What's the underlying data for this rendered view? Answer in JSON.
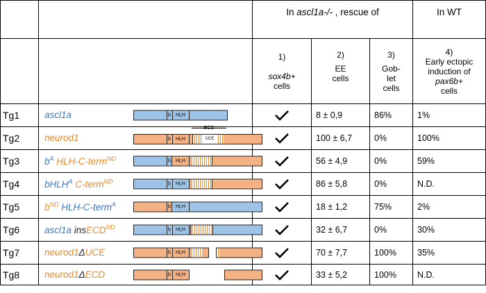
{
  "header": {
    "rescue_group": "In ascl1a-/- , rescue of",
    "rescue_prefix": "In ",
    "rescue_gene": "ascl1a-/-",
    "rescue_suffix": " , rescue of",
    "wt_group": "In WT"
  },
  "columns": [
    {
      "num": "1)",
      "line1": "",
      "line2": "sox4b+",
      "line3": "cells"
    },
    {
      "num": "2)",
      "line1": "EE",
      "line2": "cells",
      "line3": ""
    },
    {
      "num": "3)",
      "line1": "Gob-",
      "line2": "let",
      "line3": "cells"
    },
    {
      "num": "4)",
      "line1": "Early ectopic",
      "line2": "induction of",
      "line3": "pax6b+",
      "line4": "cells"
    }
  ],
  "ecd_label": "ECD",
  "domain_labels": {
    "b": "b",
    "hlh": "HLH",
    "uce": "UCE"
  },
  "rows": [
    {
      "id": "Tg1",
      "name": "ascl1a",
      "ee": "8 ± 0,9",
      "goblet": "86%",
      "early": "1%"
    },
    {
      "id": "Tg2",
      "name": "neurod1",
      "ee": "100 ± 6,7",
      "goblet": "0%",
      "early": "100%"
    },
    {
      "id": "Tg3",
      "name_pre": "b",
      "name_sup1": "A",
      "name_mid": " HLH-C-term",
      "name_sup2": "ND",
      "ee": "56 ± 4,9",
      "goblet": "0%",
      "early": "59%"
    },
    {
      "id": "Tg4",
      "name_pre": "bHLH",
      "name_sup1": "A",
      "name_mid": " C-term",
      "name_sup2": "ND",
      "ee": "86 ± 5,8",
      "goblet": "0%",
      "early": "N.D."
    },
    {
      "id": "Tg5",
      "name_pre": "b",
      "name_sup1": "ND",
      "name_mid": " HLH-C-term",
      "name_sup2": "A",
      "ee": "18 ± 1,2",
      "goblet": "75%",
      "early": "2%"
    },
    {
      "id": "Tg6",
      "name_pre": "ascl1a ",
      "name_ins": "ins",
      "name_mid": "ECD",
      "name_sup2": "ND",
      "ee": "32 ± 6,7",
      "goblet": "0%",
      "early": "30%"
    },
    {
      "id": "Tg7",
      "name_pre": "neurod1",
      "name_delta": "Δ",
      "name_mid": "UCE",
      "ee": "70 ± 7,7",
      "goblet": "100%",
      "early": "35%"
    },
    {
      "id": "Tg8",
      "name_pre": "neurod1",
      "name_delta": "Δ",
      "name_mid": "ECD",
      "ee": "33 ± 5,2",
      "goblet": "100%",
      "early": "N.D."
    }
  ],
  "check_icon": "checkmark-icon",
  "colors": {
    "blue_domain": "#9dc3e6",
    "orange_domain": "#f4b183",
    "blue_text": "#3a78c8",
    "orange_text": "#e58a2c"
  }
}
